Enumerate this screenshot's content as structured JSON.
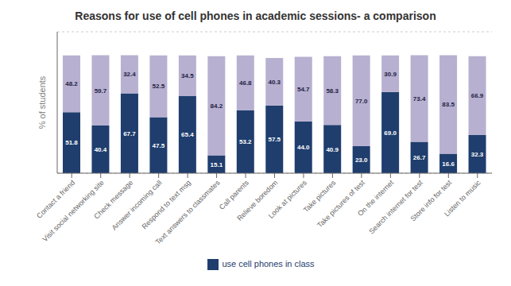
{
  "chart_data": {
    "type": "bar",
    "title": "Reasons for use of cell phones in academic sessions- a comparison",
    "ylabel": "% of students",
    "categories": [
      "Contact a friend",
      "Visit social networking site",
      "Check message",
      "Answer incoming call",
      "Respond to text msg",
      "Text answers to classmates",
      "Call parents",
      "Relieve boredom",
      "Look at pictures",
      "Take pictures",
      "Take pictures of test",
      "On the internet",
      "Search internet for test",
      "Store info for test",
      "Listen to music"
    ],
    "series": [
      {
        "name": "use cell phones in class",
        "color": "#1f3e6e",
        "values": [
          51.8,
          40.4,
          67.7,
          47.5,
          65.4,
          15.1,
          53.2,
          57.5,
          44.0,
          40.9,
          23.0,
          69.0,
          26.7,
          16.6,
          32.3
        ],
        "value_labels": [
          "51.8",
          "40.4",
          "67.7",
          "47.5",
          "65.4",
          "15.1",
          "53.2",
          "57.5",
          "44.0",
          "40.9",
          "23.0",
          "69.0",
          "26.7",
          "16.6",
          "32.3"
        ]
      },
      {
        "color": "#b8b0d0",
        "values": [
          48.2,
          59.7,
          32.4,
          52.5,
          34.5,
          84.2,
          46.8,
          40.3,
          54.7,
          58.3,
          77.0,
          30.9,
          73.4,
          83.5,
          66.9
        ],
        "value_labels": [
          "48.2",
          "59.7",
          "32.4",
          "52.5",
          "34.5",
          "84.2",
          "46.8",
          "40.3",
          "54.7",
          "58.3",
          "77.0",
          "30.9",
          "73.4",
          "83.5",
          "66.9"
        ]
      }
    ],
    "stacked": true,
    "data_labels": true,
    "ylim": [
      0,
      120
    ],
    "yticks": [
      0,
      20,
      40,
      60,
      80,
      100,
      120
    ],
    "grid": true,
    "tick_labels": "x",
    "legend": "bottom"
  }
}
